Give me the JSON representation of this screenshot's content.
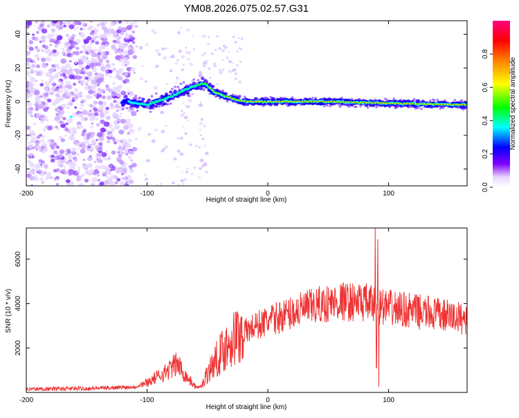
{
  "title": "YM08.2026.075.02.57.G31",
  "colors": {
    "series": "#ee3333",
    "axis": "#000000",
    "background": "#ffffff"
  },
  "chart_data": [
    {
      "type": "heatmap",
      "name": "spectrogram",
      "xlabel": "Height of straight line (km)",
      "ylabel": "Frequency (Hz)",
      "xlim": [
        -200,
        165
      ],
      "ylim": [
        -50,
        48
      ],
      "xticks": [
        -200,
        -100,
        0,
        100
      ],
      "yticks": [
        -40,
        -20,
        0,
        20,
        40
      ],
      "colorbar": {
        "label": "Normalized spectral amplitude",
        "range": [
          0,
          1
        ],
        "ticks": [
          0.0,
          0.2,
          0.4,
          0.6,
          0.8
        ],
        "tick_labels": [
          "0.0",
          "0.2",
          "0.4",
          "0.6",
          "0.8"
        ]
      },
      "ridge": [
        {
          "x": -115,
          "y": 0
        },
        {
          "x": -100,
          "y": -2
        },
        {
          "x": -80,
          "y": 3
        },
        {
          "x": -62,
          "y": 9
        },
        {
          "x": -52,
          "y": 11
        },
        {
          "x": -45,
          "y": 6
        },
        {
          "x": -35,
          "y": 3
        },
        {
          "x": -20,
          "y": 0
        },
        {
          "x": 0,
          "y": 0
        },
        {
          "x": 50,
          "y": 0
        },
        {
          "x": 100,
          "y": -1
        },
        {
          "x": 165,
          "y": -2
        }
      ]
    },
    {
      "type": "line",
      "name": "snr",
      "xlabel": "Height of straight line (km)",
      "ylabel": "SNR (10 * v/v)",
      "xlim": [
        -200,
        165
      ],
      "ylim": [
        0,
        7400
      ],
      "xticks": [
        -200,
        -100,
        0,
        100
      ],
      "yticks": [
        2000,
        4000,
        6000
      ],
      "series": [
        {
          "name": "SNR",
          "envelope": [
            {
              "x": -200,
              "y": 150
            },
            {
              "x": -150,
              "y": 180
            },
            {
              "x": -110,
              "y": 250
            },
            {
              "x": -100,
              "y": 450
            },
            {
              "x": -85,
              "y": 900
            },
            {
              "x": -75,
              "y": 1300
            },
            {
              "x": -68,
              "y": 750
            },
            {
              "x": -60,
              "y": 250
            },
            {
              "x": -55,
              "y": 250
            },
            {
              "x": -50,
              "y": 900
            },
            {
              "x": -40,
              "y": 1700
            },
            {
              "x": -30,
              "y": 2400
            },
            {
              "x": -20,
              "y": 2700
            },
            {
              "x": -10,
              "y": 3000
            },
            {
              "x": 0,
              "y": 3200
            },
            {
              "x": 20,
              "y": 3600
            },
            {
              "x": 40,
              "y": 3900
            },
            {
              "x": 60,
              "y": 4100
            },
            {
              "x": 80,
              "y": 4050
            },
            {
              "x": 100,
              "y": 3800
            },
            {
              "x": 130,
              "y": 3600
            },
            {
              "x": 165,
              "y": 3300
            }
          ],
          "spikes": [
            {
              "x": 89,
              "y": 7400
            },
            {
              "x": 90,
              "y": 1100
            },
            {
              "x": 91,
              "y": 6900
            },
            {
              "x": 92,
              "y": 250
            }
          ]
        }
      ]
    }
  ]
}
